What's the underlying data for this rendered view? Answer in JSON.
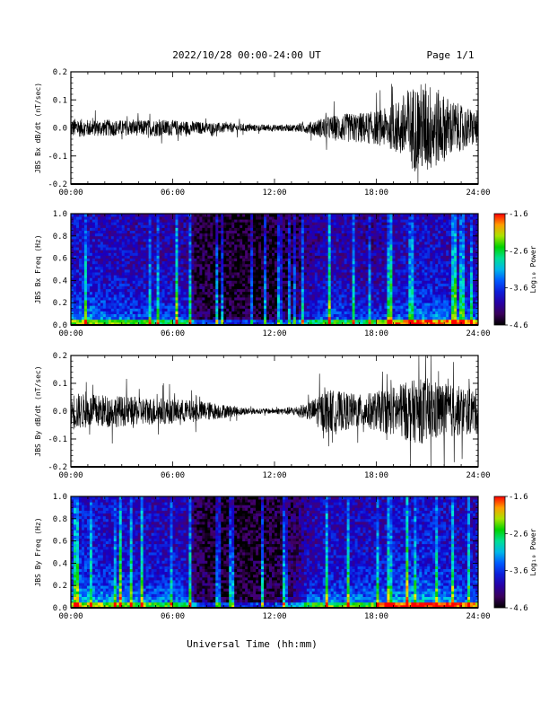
{
  "header": {
    "title": "2022/10/28  00:00-24:00 UT",
    "page": "Page 1/1"
  },
  "xlabel": "Universal Time (hh:mm)",
  "chart_data": [
    {
      "type": "line",
      "ylabel": "JBS Bx dB/dt (nT/sec)",
      "xlim": [
        0,
        24
      ],
      "ylim": [
        -0.2,
        0.2
      ],
      "x_ticklabels": [
        "00:00",
        "06:00",
        "12:00",
        "18:00",
        "24:00"
      ],
      "y_ticklabels": [
        "-0.2",
        "-0.1",
        "0.0",
        "0.1",
        "0.2"
      ],
      "envelope": {
        "x": [
          0,
          1,
          2,
          3,
          4,
          5,
          6,
          7,
          8,
          9,
          10,
          11,
          12,
          13,
          14,
          15,
          16,
          17,
          18,
          19,
          20,
          21,
          22,
          23,
          24
        ],
        "amp": [
          0.035,
          0.03,
          0.03,
          0.028,
          0.028,
          0.03,
          0.028,
          0.025,
          0.02,
          0.018,
          0.015,
          0.012,
          0.012,
          0.012,
          0.02,
          0.04,
          0.05,
          0.055,
          0.06,
          0.08,
          0.15,
          0.17,
          0.12,
          0.08,
          0.06
        ]
      }
    },
    {
      "type": "heatmap",
      "ylabel": "JBS Bx Freq (Hz)",
      "xlim": [
        0,
        24
      ],
      "ylim": [
        0,
        1.0
      ],
      "x_ticklabels": [
        "00:00",
        "06:00",
        "12:00",
        "18:00",
        "24:00"
      ],
      "y_ticklabels": [
        "0.0",
        "0.2",
        "0.4",
        "0.6",
        "0.8",
        "1.0"
      ],
      "colorbar": {
        "label": "Log₁₀ Power",
        "ticklabels": [
          "-1.6",
          "-2.6",
          "-3.6",
          "-4.6"
        ],
        "range": [
          -4.6,
          -1.6
        ]
      },
      "activity": {
        "x": [
          0,
          1,
          2,
          3,
          4,
          5,
          6,
          7,
          7.3,
          8,
          9,
          10,
          11,
          12,
          13,
          14,
          15,
          16,
          17,
          18,
          19,
          20,
          21,
          22,
          23,
          24
        ],
        "level": [
          0.55,
          0.55,
          0.5,
          0.5,
          0.45,
          0.45,
          0.45,
          0.4,
          0.15,
          0.1,
          0.08,
          0.08,
          0.08,
          0.1,
          0.15,
          0.35,
          0.45,
          0.45,
          0.4,
          0.4,
          0.45,
          0.5,
          0.55,
          0.5,
          0.45,
          0.45
        ]
      }
    },
    {
      "type": "line",
      "ylabel": "JBS By dB/dt (nT/sec)",
      "xlim": [
        0,
        24
      ],
      "ylim": [
        -0.2,
        0.2
      ],
      "x_ticklabels": [
        "00:00",
        "06:00",
        "12:00",
        "18:00",
        "24:00"
      ],
      "y_ticklabels": [
        "-0.2",
        "-0.1",
        "0.0",
        "0.1",
        "0.2"
      ],
      "envelope": {
        "x": [
          0,
          1,
          2,
          3,
          4,
          5,
          6,
          7,
          8,
          9,
          10,
          11,
          12,
          13,
          14,
          15,
          16,
          17,
          18,
          19,
          20,
          21,
          22,
          23,
          24
        ],
        "amp": [
          0.07,
          0.06,
          0.06,
          0.055,
          0.05,
          0.05,
          0.045,
          0.04,
          0.035,
          0.025,
          0.015,
          0.01,
          0.01,
          0.015,
          0.03,
          0.08,
          0.07,
          0.06,
          0.07,
          0.09,
          0.11,
          0.12,
          0.1,
          0.09,
          0.08
        ]
      }
    },
    {
      "type": "heatmap",
      "ylabel": "JBS By Freq (Hz)",
      "xlim": [
        0,
        24
      ],
      "ylim": [
        0,
        1.0
      ],
      "x_ticklabels": [
        "00:00",
        "06:00",
        "12:00",
        "18:00",
        "24:00"
      ],
      "y_ticklabels": [
        "0.0",
        "0.2",
        "0.4",
        "0.6",
        "0.8",
        "1.0"
      ],
      "colorbar": {
        "label": "Log₁₀ Power",
        "ticklabels": [
          "-1.6",
          "-2.6",
          "-3.6",
          "-4.6"
        ],
        "range": [
          -4.6,
          -1.6
        ]
      },
      "activity": {
        "x": [
          0,
          1,
          2,
          3,
          4,
          5,
          6,
          7,
          7.3,
          8,
          9,
          10,
          11,
          12,
          13,
          14,
          15,
          16,
          17,
          18,
          19,
          20,
          21,
          22,
          23,
          24
        ],
        "level": [
          0.6,
          0.6,
          0.55,
          0.55,
          0.5,
          0.5,
          0.5,
          0.45,
          0.2,
          0.12,
          0.08,
          0.08,
          0.1,
          0.12,
          0.2,
          0.45,
          0.5,
          0.5,
          0.5,
          0.5,
          0.55,
          0.6,
          0.6,
          0.55,
          0.5,
          0.5
        ]
      }
    }
  ]
}
